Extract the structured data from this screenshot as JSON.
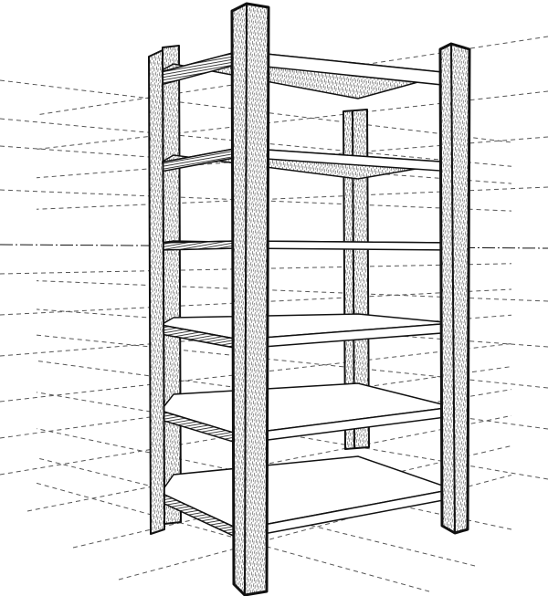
{
  "illustration": {
    "subject": "shelving-unit",
    "view": "two-point-perspective",
    "shelf_count": 6,
    "post_count": 4,
    "has_horizon_line": true,
    "has_perspective_guides": true
  },
  "colors": {
    "background": "#ffffff",
    "ink": "#111111",
    "shade": "#2a2a2a",
    "guide": "#555555"
  }
}
